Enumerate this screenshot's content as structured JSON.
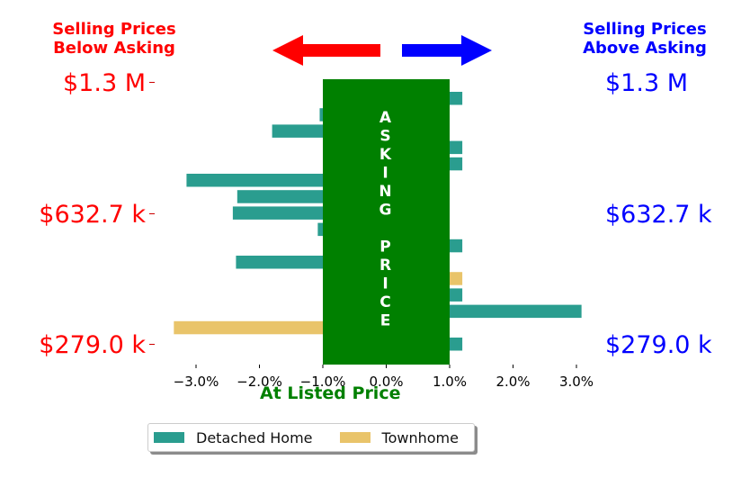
{
  "headers": {
    "left": "Selling Prices\nBelow Asking",
    "right": "Selling Prices\nAbove Asking"
  },
  "price_labels": {
    "left": [
      "$1.3 M",
      "$632.7 k",
      "$279.0 k"
    ],
    "right": [
      "$1.3 M",
      "$632.7 k",
      "$279.0 k"
    ]
  },
  "colors": {
    "below": "#ff0000",
    "above": "#0000ff",
    "detached": "#2a9d8f",
    "townhome": "#e9c46a",
    "asking_band": "#008000"
  },
  "asking_band_letters": [
    "A",
    "S",
    "K",
    "I",
    "N",
    "G",
    "",
    "P",
    "R",
    "I",
    "C",
    "E"
  ],
  "chart_data": {
    "type": "bar",
    "orientation": "horizontal",
    "xlabel": "At Listed Price",
    "xlim": [
      -3.6,
      3.6
    ],
    "xticks": [
      -3.0,
      -2.0,
      -1.0,
      0.0,
      1.0,
      2.0,
      3.0
    ],
    "xtick_labels": [
      "−3.0%",
      "−2.0%",
      "−1.0%",
      "0.0%",
      "1.0%",
      "2.0%",
      "3.0%"
    ],
    "asking_band": [
      -1.0,
      1.0
    ],
    "series": [
      {
        "name": "Detached Home",
        "color": "#2a9d8f"
      },
      {
        "name": "Townhome",
        "color": "#e9c46a"
      }
    ],
    "bars": [
      {
        "series": "Detached Home",
        "value": 1.2
      },
      {
        "series": "Detached Home",
        "value": -1.05
      },
      {
        "series": "Detached Home",
        "value": -1.8
      },
      {
        "series": "Detached Home",
        "value": 1.2
      },
      {
        "series": "Detached Home",
        "value": 1.2
      },
      {
        "series": "Detached Home",
        "value": -3.15
      },
      {
        "series": "Detached Home",
        "value": -2.35
      },
      {
        "series": "Detached Home",
        "value": -2.42
      },
      {
        "series": "Detached Home",
        "value": -1.08
      },
      {
        "series": "Detached Home",
        "value": 1.2
      },
      {
        "series": "Detached Home",
        "value": -2.37
      },
      {
        "series": "Townhome",
        "value": 1.2
      },
      {
        "series": "Detached Home",
        "value": 1.2
      },
      {
        "series": "Detached Home",
        "value": 3.08
      },
      {
        "series": "Townhome",
        "value": -3.35
      },
      {
        "series": "Detached Home",
        "value": 1.2
      }
    ],
    "legend": {
      "placement": "bottom-center"
    }
  }
}
